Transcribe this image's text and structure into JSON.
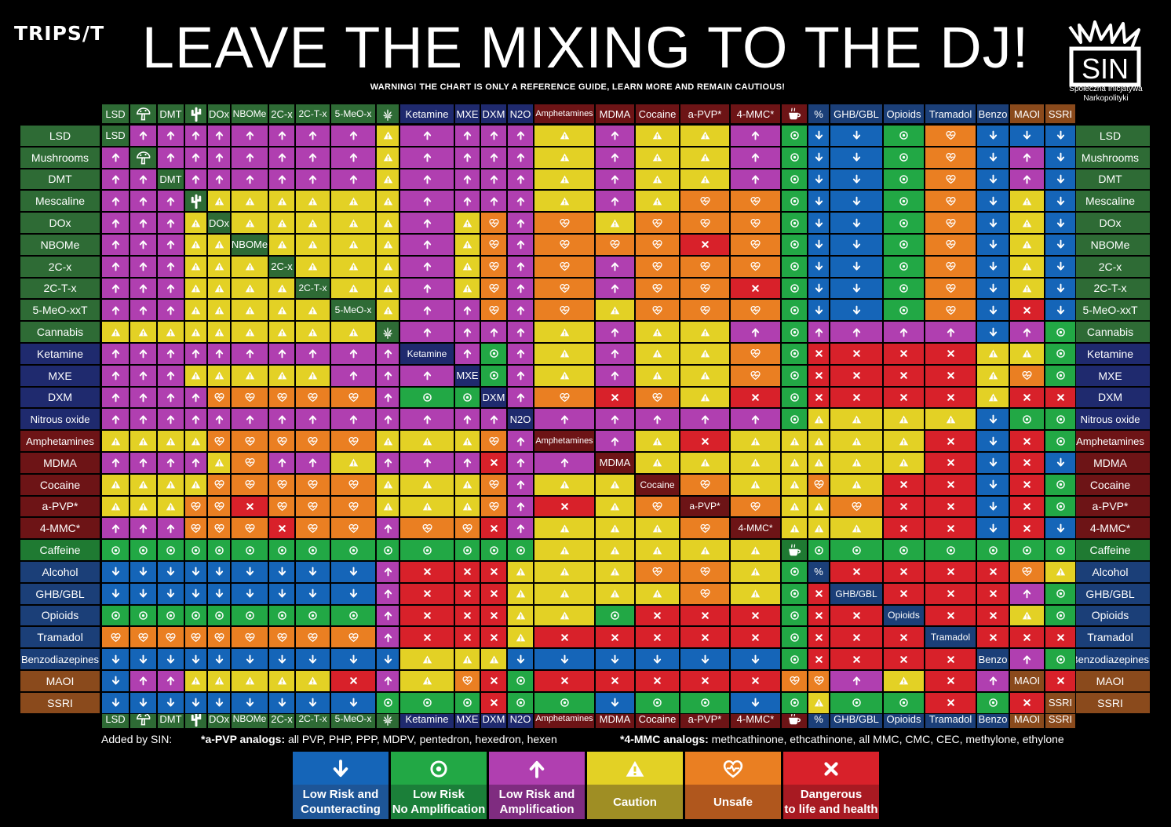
{
  "brand": "TRIPS/T",
  "title": "LEAVE THE MIXING TO THE DJ!",
  "subtitle": "WARNING! THE CHART IS ONLY A REFERENCE GUIDE, LEARN MORE AND REMAIN CAUTIOUS!",
  "sin": {
    "logo_text": "SIN",
    "line1": "Społeczna Inicjatywa",
    "line2": "Narkopolityki"
  },
  "footnotes": {
    "added_by": "Added by SIN:",
    "apvp_label": "*a-PVP analogs:",
    "apvp_text": " all PVP, PHP, PPP, MDPV, pentedron, hexedron, hexen",
    "mmc_label": "*4-MMC analogs:",
    "mmc_text": " methcathinone, ethcathinone, all MMC, CMC, CEC, methylone, ethylone"
  },
  "colors": {
    "L": "#1565b8",
    "N": "#22a845",
    "A": "#b03fb0",
    "C": "#e3d125",
    "U": "#ea7f22",
    "D": "#d8212a",
    "psy": "#2e6b35",
    "dis": "#1f2a6e",
    "stim": "#6d1416",
    "caf": "#1f7a32",
    "dep": "#1b3f78",
    "mao": "#8a4a1c"
  },
  "legend": [
    {
      "code": "L",
      "icon": "arrow-down-icon",
      "line1": "Low Risk and",
      "line2": "Counteracting",
      "bg": "#1565b8",
      "label_bg": "#1d5597",
      "color": "#1565b8"
    },
    {
      "code": "N",
      "icon": "target-icon",
      "line1": "Low Risk",
      "line2": "No Amplification",
      "bg": "#22a845",
      "label_bg": "#1b7f39",
      "color": "#22a845"
    },
    {
      "code": "A",
      "icon": "arrow-up-icon",
      "line1": "Low Risk and",
      "line2": "Amplification",
      "bg": "#b03fb0",
      "label_bg": "#7f2c80",
      "color": "#b03fb0"
    },
    {
      "code": "C",
      "icon": "warning-icon",
      "line1": "Caution",
      "line2": "",
      "bg": "#e3d125",
      "label_bg": "#9f8e24",
      "color": "#e3d125"
    },
    {
      "code": "U",
      "icon": "heart-pulse-icon",
      "line1": "Unsafe",
      "line2": "",
      "bg": "#ea7f22",
      "label_bg": "#b0571d",
      "color": "#ea7f22"
    },
    {
      "code": "D",
      "icon": "cross-icon",
      "line1": "Dangerous",
      "line2": "to life and health",
      "bg": "#d8212a",
      "label_bg": "#a81a22",
      "color": "#d8212a"
    }
  ],
  "chart_data": {
    "type": "table",
    "columns": [
      {
        "label": "LSD",
        "icon": "",
        "group": "psy"
      },
      {
        "label": "",
        "icon": "mushroom-icon",
        "group": "psy"
      },
      {
        "label": "DMT",
        "icon": "",
        "group": "psy"
      },
      {
        "label": "",
        "icon": "cactus-icon",
        "group": "psy"
      },
      {
        "label": "DOx",
        "icon": "",
        "group": "psy"
      },
      {
        "label": "NBOMe",
        "icon": "",
        "group": "psy"
      },
      {
        "label": "2C-x",
        "icon": "",
        "group": "psy"
      },
      {
        "label": "2C-T-x",
        "icon": "",
        "group": "psy"
      },
      {
        "label": "5-MeO-x",
        "icon": "",
        "group": "psy"
      },
      {
        "label": "",
        "icon": "cannabis-leaf-icon",
        "group": "psy"
      },
      {
        "label": "Ketamine",
        "icon": "",
        "group": "dis"
      },
      {
        "label": "MXE",
        "icon": "",
        "group": "dis"
      },
      {
        "label": "DXM",
        "icon": "",
        "group": "dis"
      },
      {
        "label": "N2O",
        "icon": "",
        "group": "dis"
      },
      {
        "label": "Amphetamines",
        "icon": "",
        "group": "stim"
      },
      {
        "label": "MDMA",
        "icon": "",
        "group": "stim"
      },
      {
        "label": "Cocaine",
        "icon": "",
        "group": "stim"
      },
      {
        "label": "a-PVP*",
        "icon": "",
        "group": "stim"
      },
      {
        "label": "4-MMC*",
        "icon": "",
        "group": "stim"
      },
      {
        "label": "",
        "icon": "coffee-cup-icon",
        "group": "stim"
      },
      {
        "label": "%",
        "icon": "",
        "group": "dep"
      },
      {
        "label": "GHB/GBL",
        "icon": "",
        "group": "dep"
      },
      {
        "label": "Opioids",
        "icon": "",
        "group": "dep"
      },
      {
        "label": "Tramadol",
        "icon": "",
        "group": "dep"
      },
      {
        "label": "Benzo",
        "icon": "",
        "group": "dep"
      },
      {
        "label": "MAOI",
        "icon": "",
        "group": "mao"
      },
      {
        "label": "SSRI",
        "icon": "",
        "group": "mao"
      }
    ],
    "rows": [
      {
        "label": "LSD",
        "group": "psy",
        "diag": "LSD",
        "cells": [
          "X",
          "A",
          "A",
          "A",
          "A",
          "A",
          "A",
          "A",
          "A",
          "C",
          "A",
          "A",
          "A",
          "A",
          "C",
          "A",
          "C",
          "C",
          "A",
          "N",
          "L",
          "L",
          "N",
          "U",
          "L",
          "L",
          "L"
        ]
      },
      {
        "label": "Mushrooms",
        "group": "psy",
        "diag": "",
        "cells": [
          "A",
          "X",
          "A",
          "A",
          "A",
          "A",
          "A",
          "A",
          "A",
          "C",
          "A",
          "A",
          "A",
          "A",
          "C",
          "A",
          "C",
          "C",
          "A",
          "N",
          "L",
          "L",
          "N",
          "U",
          "L",
          "A",
          "L"
        ]
      },
      {
        "label": "DMT",
        "group": "psy",
        "diag": "DMT",
        "cells": [
          "A",
          "A",
          "X",
          "A",
          "A",
          "A",
          "A",
          "A",
          "A",
          "C",
          "A",
          "A",
          "A",
          "A",
          "C",
          "A",
          "C",
          "C",
          "A",
          "N",
          "L",
          "L",
          "N",
          "U",
          "L",
          "A",
          "L"
        ]
      },
      {
        "label": "Mescaline",
        "group": "psy",
        "diag": "",
        "cells": [
          "A",
          "A",
          "A",
          "X",
          "C",
          "C",
          "C",
          "C",
          "C",
          "C",
          "A",
          "A",
          "A",
          "A",
          "C",
          "A",
          "C",
          "U",
          "U",
          "N",
          "L",
          "L",
          "N",
          "U",
          "L",
          "C",
          "L"
        ]
      },
      {
        "label": "DOx",
        "group": "psy",
        "diag": "DOx",
        "cells": [
          "A",
          "A",
          "A",
          "C",
          "X",
          "C",
          "C",
          "C",
          "C",
          "C",
          "A",
          "C",
          "U",
          "A",
          "U",
          "C",
          "U",
          "U",
          "U",
          "N",
          "L",
          "L",
          "N",
          "U",
          "L",
          "C",
          "L"
        ]
      },
      {
        "label": "NBOMe",
        "group": "psy",
        "diag": "NBOMe",
        "cells": [
          "A",
          "A",
          "A",
          "C",
          "C",
          "X",
          "C",
          "C",
          "C",
          "C",
          "A",
          "C",
          "U",
          "A",
          "U",
          "U",
          "U",
          "D",
          "U",
          "N",
          "L",
          "L",
          "N",
          "U",
          "L",
          "C",
          "L"
        ]
      },
      {
        "label": "2C-x",
        "group": "psy",
        "diag": "2C-x",
        "cells": [
          "A",
          "A",
          "A",
          "C",
          "C",
          "C",
          "X",
          "C",
          "C",
          "C",
          "A",
          "C",
          "U",
          "A",
          "U",
          "A",
          "U",
          "U",
          "U",
          "N",
          "L",
          "L",
          "N",
          "U",
          "L",
          "C",
          "L"
        ]
      },
      {
        "label": "2C-T-x",
        "group": "psy",
        "diag": "2C-T-x",
        "cells": [
          "A",
          "A",
          "A",
          "C",
          "C",
          "C",
          "C",
          "X",
          "C",
          "C",
          "A",
          "C",
          "U",
          "A",
          "U",
          "A",
          "U",
          "U",
          "D",
          "N",
          "L",
          "L",
          "N",
          "U",
          "L",
          "C",
          "L"
        ]
      },
      {
        "label": "5-MeO-xxT",
        "group": "psy",
        "diag": "5-MeO-x",
        "cells": [
          "A",
          "A",
          "A",
          "C",
          "C",
          "C",
          "C",
          "C",
          "X",
          "C",
          "A",
          "A",
          "U",
          "A",
          "U",
          "C",
          "U",
          "U",
          "U",
          "N",
          "L",
          "L",
          "N",
          "U",
          "L",
          "D",
          "L"
        ]
      },
      {
        "label": "Cannabis",
        "group": "psy",
        "diag": "",
        "cells": [
          "C",
          "C",
          "C",
          "C",
          "C",
          "C",
          "C",
          "C",
          "C",
          "X",
          "A",
          "A",
          "A",
          "A",
          "C",
          "A",
          "C",
          "C",
          "A",
          "N",
          "A",
          "A",
          "A",
          "A",
          "L",
          "A",
          "N"
        ]
      },
      {
        "label": "Ketamine",
        "group": "dis",
        "diag": "Ketamine",
        "cells": [
          "A",
          "A",
          "A",
          "A",
          "A",
          "A",
          "A",
          "A",
          "A",
          "A",
          "X",
          "A",
          "N",
          "A",
          "C",
          "A",
          "C",
          "C",
          "U",
          "N",
          "D",
          "D",
          "D",
          "D",
          "C",
          "C",
          "N"
        ]
      },
      {
        "label": "MXE",
        "group": "dis",
        "diag": "MXE",
        "cells": [
          "A",
          "A",
          "A",
          "C",
          "C",
          "C",
          "C",
          "C",
          "A",
          "A",
          "A",
          "X",
          "N",
          "A",
          "C",
          "A",
          "C",
          "C",
          "U",
          "N",
          "D",
          "D",
          "D",
          "D",
          "C",
          "U",
          "N"
        ]
      },
      {
        "label": "DXM",
        "group": "dis",
        "diag": "DXM",
        "cells": [
          "A",
          "A",
          "A",
          "A",
          "U",
          "U",
          "U",
          "U",
          "U",
          "A",
          "N",
          "N",
          "X",
          "A",
          "U",
          "D",
          "U",
          "C",
          "D",
          "N",
          "D",
          "D",
          "D",
          "D",
          "C",
          "D",
          "D"
        ]
      },
      {
        "label": "Nitrous oxide",
        "group": "dis",
        "diag": "N2O",
        "cells": [
          "A",
          "A",
          "A",
          "A",
          "A",
          "A",
          "A",
          "A",
          "A",
          "A",
          "A",
          "A",
          "A",
          "X",
          "A",
          "A",
          "A",
          "A",
          "A",
          "N",
          "C",
          "C",
          "C",
          "C",
          "L",
          "N",
          "N"
        ]
      },
      {
        "label": "Amphetamines",
        "group": "stim",
        "diag": "Amphetamines",
        "cells": [
          "C",
          "C",
          "C",
          "C",
          "U",
          "U",
          "U",
          "U",
          "U",
          "C",
          "C",
          "C",
          "U",
          "A",
          "X",
          "A",
          "C",
          "D",
          "C",
          "C",
          "C",
          "C",
          "C",
          "D",
          "L",
          "D",
          "N"
        ]
      },
      {
        "label": "MDMA",
        "group": "stim",
        "diag": "MDMA",
        "cells": [
          "A",
          "A",
          "A",
          "A",
          "C",
          "U",
          "A",
          "A",
          "C",
          "A",
          "A",
          "A",
          "D",
          "A",
          "A",
          "X",
          "C",
          "C",
          "C",
          "C",
          "C",
          "C",
          "C",
          "D",
          "L",
          "D",
          "L"
        ]
      },
      {
        "label": "Cocaine",
        "group": "stim",
        "diag": "Cocaine",
        "cells": [
          "C",
          "C",
          "C",
          "C",
          "U",
          "U",
          "U",
          "U",
          "U",
          "C",
          "C",
          "C",
          "U",
          "A",
          "C",
          "C",
          "X",
          "U",
          "C",
          "C",
          "U",
          "C",
          "D",
          "D",
          "L",
          "D",
          "N"
        ]
      },
      {
        "label": "a-PVP*",
        "group": "stim",
        "diag": "a-PVP*",
        "cells": [
          "C",
          "C",
          "C",
          "U",
          "U",
          "D",
          "U",
          "U",
          "U",
          "C",
          "C",
          "C",
          "U",
          "A",
          "D",
          "C",
          "U",
          "X",
          "U",
          "C",
          "C",
          "U",
          "D",
          "D",
          "L",
          "D",
          "N"
        ]
      },
      {
        "label": "4-MMC*",
        "group": "stim",
        "diag": "4-MMC*",
        "cells": [
          "A",
          "A",
          "A",
          "U",
          "U",
          "U",
          "D",
          "U",
          "U",
          "A",
          "U",
          "U",
          "D",
          "A",
          "C",
          "C",
          "C",
          "U",
          "X",
          "C",
          "C",
          "C",
          "D",
          "D",
          "L",
          "D",
          "L"
        ]
      },
      {
        "label": "Caffeine",
        "group": "caf",
        "diag": "",
        "cells": [
          "N",
          "N",
          "N",
          "N",
          "N",
          "N",
          "N",
          "N",
          "N",
          "N",
          "N",
          "N",
          "N",
          "N",
          "C",
          "C",
          "C",
          "C",
          "C",
          "X",
          "N",
          "N",
          "N",
          "N",
          "N",
          "N",
          "N"
        ]
      },
      {
        "label": "Alcohol",
        "group": "dep",
        "diag": "%",
        "cells": [
          "L",
          "L",
          "L",
          "L",
          "L",
          "L",
          "L",
          "L",
          "L",
          "A",
          "D",
          "D",
          "D",
          "C",
          "C",
          "C",
          "U",
          "U",
          "C",
          "N",
          "X",
          "D",
          "D",
          "D",
          "D",
          "U",
          "C"
        ]
      },
      {
        "label": "GHB/GBL",
        "group": "dep",
        "diag": "GHB/GBL",
        "cells": [
          "L",
          "L",
          "L",
          "L",
          "L",
          "L",
          "L",
          "L",
          "L",
          "A",
          "D",
          "D",
          "D",
          "C",
          "C",
          "C",
          "C",
          "U",
          "C",
          "N",
          "D",
          "X",
          "D",
          "D",
          "D",
          "A",
          "N"
        ]
      },
      {
        "label": "Opioids",
        "group": "dep",
        "diag": "Opioids",
        "cells": [
          "N",
          "N",
          "N",
          "N",
          "N",
          "N",
          "N",
          "N",
          "N",
          "A",
          "D",
          "D",
          "D",
          "C",
          "C",
          "N",
          "D",
          "D",
          "D",
          "N",
          "D",
          "D",
          "X",
          "D",
          "D",
          "C",
          "N"
        ]
      },
      {
        "label": "Tramadol",
        "group": "dep",
        "diag": "Tramadol",
        "cells": [
          "U",
          "U",
          "U",
          "U",
          "U",
          "U",
          "U",
          "U",
          "U",
          "A",
          "D",
          "D",
          "D",
          "C",
          "D",
          "D",
          "D",
          "D",
          "D",
          "N",
          "D",
          "D",
          "D",
          "X",
          "D",
          "D",
          "D"
        ]
      },
      {
        "label": "Benzodiazepines",
        "group": "dep",
        "diag": "Benzo",
        "cells": [
          "L",
          "L",
          "L",
          "L",
          "L",
          "L",
          "L",
          "L",
          "L",
          "L",
          "C",
          "C",
          "C",
          "L",
          "L",
          "L",
          "L",
          "L",
          "L",
          "N",
          "D",
          "D",
          "D",
          "D",
          "X",
          "A",
          "N"
        ]
      },
      {
        "label": "MAOI",
        "group": "mao",
        "diag": "MAOI",
        "cells": [
          "L",
          "A",
          "A",
          "C",
          "C",
          "C",
          "C",
          "C",
          "D",
          "A",
          "C",
          "U",
          "D",
          "N",
          "D",
          "D",
          "D",
          "D",
          "D",
          "U",
          "U",
          "A",
          "C",
          "D",
          "A",
          "X",
          "D"
        ]
      },
      {
        "label": "SSRI",
        "group": "mao",
        "diag": "SSRI",
        "cells": [
          "L",
          "L",
          "L",
          "L",
          "L",
          "L",
          "L",
          "L",
          "L",
          "N",
          "N",
          "N",
          "D",
          "N",
          "N",
          "L",
          "N",
          "N",
          "L",
          "N",
          "C",
          "N",
          "N",
          "D",
          "N",
          "D",
          "X"
        ]
      }
    ]
  }
}
